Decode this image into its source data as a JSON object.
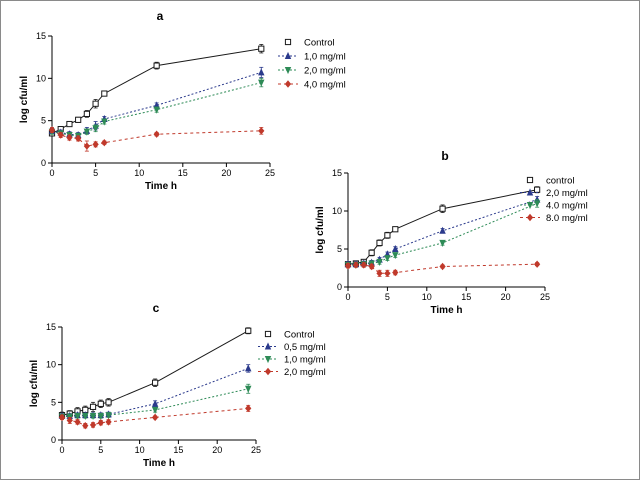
{
  "chart_data": [
    {
      "type": "line",
      "panel_label": "a",
      "xlabel": "Time h",
      "ylabel": "log cfu/ml",
      "xlim": [
        0,
        25
      ],
      "ylim": [
        0,
        15
      ],
      "xticks": [
        0,
        5,
        10,
        15,
        20,
        25
      ],
      "yticks": [
        0,
        5,
        10,
        15
      ],
      "legend_position": "right",
      "series": [
        {
          "name": "Control",
          "color": "#1a1a1a",
          "dash": "",
          "marker": "square",
          "x": [
            0,
            1,
            2,
            3,
            4,
            5,
            6,
            12,
            24
          ],
          "y": [
            3.5,
            4.0,
            4.6,
            5.1,
            5.8,
            7.0,
            8.2,
            11.5,
            13.5
          ],
          "err": [
            0.3,
            0.3,
            0.2,
            0.3,
            0.4,
            0.5,
            0.3,
            0.4,
            0.5
          ]
        },
        {
          "name": "1,0 mg/ml",
          "color": "#2b3a8c",
          "dash": "2,2",
          "marker": "triangle",
          "x": [
            0,
            1,
            2,
            3,
            4,
            5,
            6,
            12,
            24
          ],
          "y": [
            3.8,
            3.6,
            3.4,
            3.3,
            3.8,
            4.4,
            5.2,
            6.8,
            10.7
          ],
          "err": [
            0.3,
            0.3,
            0.3,
            0.3,
            0.4,
            0.5,
            0.3,
            0.3,
            0.6
          ]
        },
        {
          "name": "2,0 mg/ml",
          "color": "#2e8b57",
          "dash": "2,2",
          "marker": "triangle-down",
          "x": [
            0,
            1,
            2,
            3,
            4,
            5,
            6,
            12,
            24
          ],
          "y": [
            3.7,
            3.5,
            3.3,
            3.2,
            3.7,
            4.1,
            4.9,
            6.3,
            9.5
          ],
          "err": [
            0.3,
            0.3,
            0.3,
            0.3,
            0.3,
            0.4,
            0.3,
            0.3,
            0.5
          ]
        },
        {
          "name": "4,0 mg/ml",
          "color": "#c0392b",
          "dash": "3,3",
          "marker": "diamond",
          "x": [
            0,
            1,
            2,
            3,
            4,
            5,
            6,
            12,
            24
          ],
          "y": [
            3.9,
            3.3,
            3.0,
            2.9,
            2.0,
            2.2,
            2.4,
            3.4,
            3.8
          ],
          "err": [
            0.3,
            0.3,
            0.3,
            0.3,
            0.6,
            0.3,
            0.2,
            0.2,
            0.4
          ]
        }
      ]
    },
    {
      "type": "line",
      "panel_label": "b",
      "xlabel": "Time h",
      "ylabel": "log cfu/ml",
      "xlim": [
        0,
        25
      ],
      "ylim": [
        0,
        15
      ],
      "xticks": [
        0,
        5,
        10,
        15,
        20,
        25
      ],
      "yticks": [
        0,
        5,
        10,
        15
      ],
      "legend_position": "right",
      "series": [
        {
          "name": "control",
          "color": "#1a1a1a",
          "dash": "",
          "marker": "square",
          "x": [
            0,
            1,
            2,
            3,
            4,
            5,
            6,
            12,
            24
          ],
          "y": [
            3.0,
            3.1,
            3.3,
            4.5,
            5.8,
            6.8,
            7.6,
            10.3,
            12.8
          ],
          "err": [
            0.3,
            0.3,
            0.3,
            0.4,
            0.4,
            0.4,
            0.3,
            0.5,
            0.4
          ]
        },
        {
          "name": "2,0 mg/ml",
          "color": "#2b3a8c",
          "dash": "2,2",
          "marker": "triangle",
          "x": [
            0,
            1,
            2,
            3,
            4,
            5,
            6,
            12,
            24
          ],
          "y": [
            3.0,
            3.0,
            3.1,
            3.2,
            3.6,
            4.3,
            5.0,
            7.4,
            11.5
          ],
          "err": [
            0.3,
            0.3,
            0.3,
            0.3,
            0.3,
            0.3,
            0.3,
            0.3,
            0.4
          ]
        },
        {
          "name": "4.0 mg/ml",
          "color": "#2e8b57",
          "dash": "2,2",
          "marker": "triangle-down",
          "x": [
            0,
            1,
            2,
            3,
            4,
            5,
            6,
            12,
            24
          ],
          "y": [
            2.9,
            2.9,
            3.0,
            3.1,
            3.3,
            3.8,
            4.2,
            5.8,
            11.0
          ],
          "err": [
            0.3,
            0.3,
            0.3,
            0.3,
            0.3,
            0.3,
            0.3,
            0.3,
            0.5
          ]
        },
        {
          "name": "8.0 mg/ml",
          "color": "#c0392b",
          "dash": "3,3",
          "marker": "diamond",
          "x": [
            0,
            1,
            2,
            3,
            4,
            5,
            6,
            12,
            24
          ],
          "y": [
            2.8,
            2.9,
            2.9,
            2.7,
            1.8,
            1.8,
            1.9,
            2.7,
            3.0
          ],
          "err": [
            0.3,
            0.3,
            0.3,
            0.3,
            0.4,
            0.4,
            0.3,
            0.2,
            0.2
          ]
        }
      ]
    },
    {
      "type": "line",
      "panel_label": "c",
      "xlabel": "Time h",
      "ylabel": "log cfu/ml",
      "xlim": [
        0,
        25
      ],
      "ylim": [
        0,
        15
      ],
      "xticks": [
        0,
        5,
        10,
        15,
        20,
        25
      ],
      "yticks": [
        0,
        5,
        10,
        15
      ],
      "legend_position": "right",
      "series": [
        {
          "name": "Control",
          "color": "#1a1a1a",
          "dash": "",
          "marker": "square",
          "x": [
            0,
            1,
            2,
            3,
            4,
            5,
            6,
            12,
            24
          ],
          "y": [
            3.3,
            3.5,
            3.8,
            4.0,
            4.4,
            4.8,
            5.0,
            7.6,
            14.5
          ],
          "err": [
            0.4,
            0.4,
            0.5,
            0.5,
            0.6,
            0.5,
            0.5,
            0.5,
            0.4
          ]
        },
        {
          "name": "0,5 mg/ml",
          "color": "#2b3a8c",
          "dash": "2,2",
          "marker": "triangle",
          "x": [
            0,
            1,
            2,
            3,
            4,
            5,
            6,
            12,
            24
          ],
          "y": [
            3.2,
            3.2,
            3.3,
            3.3,
            3.3,
            3.3,
            3.4,
            4.8,
            9.5
          ],
          "err": [
            0.3,
            0.3,
            0.3,
            0.3,
            0.3,
            0.3,
            0.3,
            0.4,
            0.5
          ]
        },
        {
          "name": "1,0 mg/ml",
          "color": "#2e8b57",
          "dash": "2,2",
          "marker": "triangle-down",
          "x": [
            0,
            1,
            2,
            3,
            4,
            5,
            6,
            12,
            24
          ],
          "y": [
            3.1,
            3.1,
            3.2,
            3.2,
            3.2,
            3.2,
            3.3,
            4.0,
            6.8
          ],
          "err": [
            0.3,
            0.3,
            0.3,
            0.3,
            0.3,
            0.3,
            0.3,
            0.3,
            0.6
          ]
        },
        {
          "name": "2,0 mg/ml",
          "color": "#c0392b",
          "dash": "3,3",
          "marker": "diamond",
          "x": [
            0,
            1,
            2,
            3,
            4,
            5,
            6,
            12,
            24
          ],
          "y": [
            3.0,
            2.6,
            2.4,
            1.9,
            2.0,
            2.3,
            2.4,
            3.0,
            4.2
          ],
          "err": [
            0.3,
            0.4,
            0.3,
            0.3,
            0.3,
            0.3,
            0.3,
            0.2,
            0.4
          ]
        }
      ]
    }
  ]
}
